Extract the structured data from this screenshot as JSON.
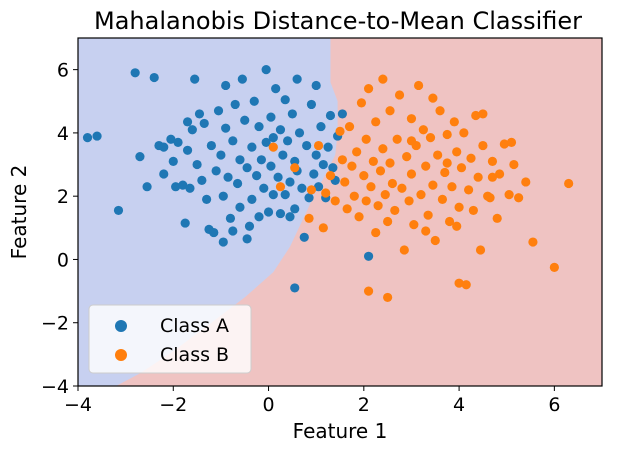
{
  "chart_data": {
    "type": "scatter",
    "title": "Mahalanobis Distance-to-Mean Classifier",
    "xlabel": "Feature 1",
    "ylabel": "Feature 2",
    "xlim": [
      -4,
      7
    ],
    "ylim": [
      -4,
      7
    ],
    "x_ticks": [
      -4,
      -2,
      0,
      2,
      4,
      6
    ],
    "y_ticks": [
      -4,
      -2,
      0,
      2,
      4,
      6
    ],
    "x_tick_labels": [
      "−4",
      "−2",
      "0",
      "2",
      "4",
      "6"
    ],
    "y_tick_labels": [
      "−4",
      "−2",
      "0",
      "2",
      "4",
      "6"
    ],
    "grid": false,
    "legend_position": "lower-left",
    "decision_regions": {
      "class_a_color": "#c7d0f0",
      "class_b_color": "#efc3c2",
      "boundary": [
        [
          1.3,
          7
        ],
        [
          1.3,
          5.6
        ],
        [
          1.45,
          5.0
        ],
        [
          1.45,
          4.0
        ],
        [
          1.4,
          3.3
        ],
        [
          1.2,
          2.7
        ],
        [
          0.95,
          2.0
        ],
        [
          0.7,
          1.2
        ],
        [
          0.45,
          0.4
        ],
        [
          0.1,
          -0.4
        ],
        [
          -0.5,
          -1.2
        ],
        [
          -1.2,
          -2.0
        ],
        [
          -2.0,
          -2.9
        ],
        [
          -2.7,
          -3.6
        ],
        [
          -3.2,
          -4
        ]
      ]
    },
    "series": [
      {
        "name": "Class A",
        "color": "#1f77b4",
        "points": [
          [
            -3.8,
            3.85
          ],
          [
            -3.6,
            3.9
          ],
          [
            -3.15,
            1.55
          ],
          [
            -2.8,
            5.9
          ],
          [
            -2.4,
            5.75
          ],
          [
            -2.7,
            3.25
          ],
          [
            -2.55,
            2.3
          ],
          [
            -2.3,
            3.6
          ],
          [
            -2.2,
            3.55
          ],
          [
            -2.2,
            2.7
          ],
          [
            -2.05,
            3.8
          ],
          [
            -2.0,
            3.1
          ],
          [
            -1.95,
            2.3
          ],
          [
            -1.9,
            3.7
          ],
          [
            -1.8,
            2.35
          ],
          [
            -1.75,
            1.15
          ],
          [
            -1.7,
            4.35
          ],
          [
            -1.7,
            3.45
          ],
          [
            -1.65,
            2.25
          ],
          [
            -1.6,
            4.1
          ],
          [
            -1.55,
            5.7
          ],
          [
            -1.5,
            3.0
          ],
          [
            -1.45,
            4.6
          ],
          [
            -1.4,
            2.5
          ],
          [
            -1.35,
            4.3
          ],
          [
            -1.3,
            1.9
          ],
          [
            -1.25,
            0.95
          ],
          [
            -1.2,
            3.6
          ],
          [
            -1.15,
            0.85
          ],
          [
            -1.1,
            2.8
          ],
          [
            -1.05,
            4.7
          ],
          [
            -1.0,
            3.3
          ],
          [
            -0.95,
            2.0
          ],
          [
            -0.95,
            0.55
          ],
          [
            -0.9,
            4.15
          ],
          [
            -0.9,
            5.5
          ],
          [
            -0.85,
            2.6
          ],
          [
            -0.8,
            1.3
          ],
          [
            -0.75,
            3.75
          ],
          [
            -0.75,
            0.9
          ],
          [
            -0.7,
            4.9
          ],
          [
            -0.65,
            2.4
          ],
          [
            -0.6,
            1.65
          ],
          [
            -0.6,
            3.15
          ],
          [
            -0.55,
            5.7
          ],
          [
            -0.5,
            4.4
          ],
          [
            -0.45,
            2.9
          ],
          [
            -0.45,
            0.65
          ],
          [
            -0.4,
            1.05
          ],
          [
            -0.35,
            3.55
          ],
          [
            -0.35,
            1.9
          ],
          [
            -0.3,
            5.0
          ],
          [
            -0.25,
            2.65
          ],
          [
            -0.2,
            4.2
          ],
          [
            -0.2,
            1.35
          ],
          [
            -0.15,
            3.15
          ],
          [
            -0.1,
            2.25
          ],
          [
            -0.05,
            6.0
          ],
          [
            -0.05,
            3.7
          ],
          [
            0.0,
            1.5
          ],
          [
            0.05,
            4.5
          ],
          [
            0.05,
            2.95
          ],
          [
            0.1,
            2.05
          ],
          [
            0.1,
            3.85
          ],
          [
            0.15,
            5.4
          ],
          [
            0.2,
            2.6
          ],
          [
            0.25,
            1.45
          ],
          [
            0.25,
            4.1
          ],
          [
            0.3,
            3.3
          ],
          [
            0.35,
            5.05
          ],
          [
            0.35,
            2.05
          ],
          [
            0.4,
            3.75
          ],
          [
            0.45,
            2.45
          ],
          [
            0.45,
            1.35
          ],
          [
            0.5,
            4.6
          ],
          [
            0.55,
            3.1
          ],
          [
            0.55,
            1.6
          ],
          [
            0.6,
            5.7
          ],
          [
            0.6,
            2.8
          ],
          [
            0.65,
            4.0
          ],
          [
            0.7,
            2.25
          ],
          [
            0.75,
            0.7
          ],
          [
            0.8,
            3.6
          ],
          [
            0.85,
            1.95
          ],
          [
            0.9,
            4.9
          ],
          [
            0.95,
            2.7
          ],
          [
            1.0,
            3.3
          ],
          [
            1.0,
            5.5
          ],
          [
            1.05,
            2.3
          ],
          [
            1.1,
            4.2
          ],
          [
            1.15,
            3.0
          ],
          [
            1.2,
            1.95
          ],
          [
            1.25,
            3.55
          ],
          [
            1.3,
            4.55
          ],
          [
            1.35,
            2.9
          ],
          [
            1.4,
            2.5
          ],
          [
            1.45,
            3.9
          ],
          [
            0.55,
            -0.9
          ],
          [
            2.1,
            0.1
          ],
          [
            1.55,
            4.6
          ]
        ]
      },
      {
        "name": "Class B",
        "color": "#ff7f0e",
        "points": [
          [
            0.1,
            3.55
          ],
          [
            0.25,
            2.3
          ],
          [
            0.55,
            2.9
          ],
          [
            0.85,
            1.3
          ],
          [
            0.9,
            2.2
          ],
          [
            1.05,
            3.6
          ],
          [
            1.15,
            1.0
          ],
          [
            1.2,
            2.1
          ],
          [
            1.3,
            2.65
          ],
          [
            1.4,
            1.85
          ],
          [
            1.5,
            4.05
          ],
          [
            1.55,
            3.15
          ],
          [
            1.6,
            2.45
          ],
          [
            1.65,
            1.6
          ],
          [
            1.7,
            4.2
          ],
          [
            1.75,
            2.95
          ],
          [
            1.8,
            2.0
          ],
          [
            1.85,
            3.4
          ],
          [
            1.9,
            1.35
          ],
          [
            1.95,
            4.95
          ],
          [
            2.0,
            2.65
          ],
          [
            2.05,
            3.8
          ],
          [
            2.05,
            1.85
          ],
          [
            2.1,
            5.4
          ],
          [
            2.15,
            2.3
          ],
          [
            2.2,
            3.1
          ],
          [
            2.25,
            4.35
          ],
          [
            2.25,
            0.85
          ],
          [
            2.3,
            1.7
          ],
          [
            2.35,
            2.8
          ],
          [
            2.4,
            3.5
          ],
          [
            2.4,
            5.7
          ],
          [
            2.45,
            2.05
          ],
          [
            2.5,
            1.2
          ],
          [
            2.55,
            4.7
          ],
          [
            2.55,
            3.05
          ],
          [
            2.6,
            2.4
          ],
          [
            2.65,
            1.55
          ],
          [
            2.7,
            3.8
          ],
          [
            2.75,
            5.2
          ],
          [
            2.8,
            2.25
          ],
          [
            2.85,
            0.3
          ],
          [
            2.9,
            3.25
          ],
          [
            2.95,
            1.85
          ],
          [
            3.0,
            4.45
          ],
          [
            3.0,
            2.7
          ],
          [
            3.05,
            1.1
          ],
          [
            3.1,
            3.6
          ],
          [
            3.15,
            5.5
          ],
          [
            3.2,
            2.05
          ],
          [
            3.25,
            4.1
          ],
          [
            3.3,
            2.95
          ],
          [
            3.35,
            1.4
          ],
          [
            3.4,
            3.85
          ],
          [
            3.45,
            5.1
          ],
          [
            3.45,
            2.35
          ],
          [
            3.5,
            0.6
          ],
          [
            3.55,
            3.3
          ],
          [
            3.6,
            4.7
          ],
          [
            3.65,
            1.9
          ],
          [
            3.7,
            2.75
          ],
          [
            3.75,
            3.95
          ],
          [
            3.8,
            1.2
          ],
          [
            3.85,
            2.3
          ],
          [
            3.9,
            4.35
          ],
          [
            3.95,
            3.4
          ],
          [
            4.0,
            1.65
          ],
          [
            4.05,
            2.9
          ],
          [
            4.1,
            4.0
          ],
          [
            4.15,
            -0.8
          ],
          [
            4.2,
            2.2
          ],
          [
            4.25,
            3.2
          ],
          [
            4.3,
            1.55
          ],
          [
            4.35,
            4.55
          ],
          [
            4.4,
            2.6
          ],
          [
            4.45,
            0.3
          ],
          [
            4.5,
            3.6
          ],
          [
            4.6,
            2.0
          ],
          [
            4.7,
            3.1
          ],
          [
            4.8,
            1.3
          ],
          [
            4.85,
            2.7
          ],
          [
            4.95,
            3.65
          ],
          [
            5.05,
            2.05
          ],
          [
            5.15,
            3.0
          ],
          [
            5.25,
            1.95
          ],
          [
            5.4,
            2.45
          ],
          [
            5.55,
            0.55
          ],
          [
            6.3,
            2.4
          ],
          [
            6.0,
            -0.25
          ],
          [
            3.3,
            0.9
          ],
          [
            2.5,
            -1.2
          ],
          [
            2.1,
            -1.0
          ],
          [
            4.0,
            -0.75
          ],
          [
            3.95,
            1.05
          ],
          [
            4.5,
            4.6
          ],
          [
            4.7,
            2.6
          ],
          [
            3.75,
            3.05
          ],
          [
            5.1,
            3.7
          ],
          [
            4.65,
            1.95
          ],
          [
            3.0,
            3.75
          ]
        ]
      }
    ]
  }
}
